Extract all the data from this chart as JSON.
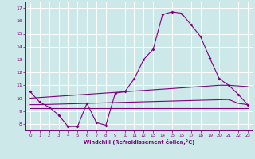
{
  "title": "",
  "xlabel": "Windchill (Refroidissement éolien,°C)",
  "bg_color": "#cce8e8",
  "line_color": "#800080",
  "grid_color": "#ffffff",
  "x_ticks": [
    0,
    1,
    2,
    3,
    4,
    5,
    6,
    7,
    8,
    9,
    10,
    11,
    12,
    13,
    14,
    15,
    16,
    17,
    18,
    19,
    20,
    21,
    22,
    23
  ],
  "y_ticks": [
    8,
    9,
    10,
    11,
    12,
    13,
    14,
    15,
    16,
    17
  ],
  "ylim": [
    7.5,
    17.5
  ],
  "xlim": [
    -0.5,
    23.5
  ],
  "series": [
    {
      "x": [
        0,
        1,
        2,
        3,
        4,
        5,
        6,
        7,
        8,
        9,
        10,
        11,
        12,
        13,
        14,
        15,
        16,
        17,
        18,
        19,
        20,
        21,
        22,
        23
      ],
      "y": [
        10.5,
        9.7,
        9.3,
        8.7,
        7.8,
        7.8,
        9.6,
        8.1,
        7.9,
        10.4,
        10.5,
        11.5,
        13.0,
        13.8,
        16.5,
        16.7,
        16.6,
        15.7,
        14.8,
        13.1,
        11.5,
        11.0,
        10.3,
        9.5
      ],
      "marker": true
    },
    {
      "x": [
        0,
        1,
        2,
        3,
        4,
        5,
        6,
        7,
        8,
        9,
        10,
        11,
        12,
        13,
        14,
        15,
        16,
        17,
        18,
        19,
        20,
        21,
        22,
        23
      ],
      "y": [
        10.0,
        10.05,
        10.1,
        10.15,
        10.2,
        10.25,
        10.3,
        10.35,
        10.4,
        10.45,
        10.5,
        10.55,
        10.6,
        10.65,
        10.7,
        10.75,
        10.8,
        10.85,
        10.9,
        10.95,
        11.0,
        11.0,
        10.95,
        10.9
      ],
      "marker": false
    },
    {
      "x": [
        0,
        1,
        2,
        3,
        4,
        5,
        6,
        7,
        8,
        9,
        10,
        11,
        12,
        13,
        14,
        15,
        16,
        17,
        18,
        19,
        20,
        21,
        22,
        23
      ],
      "y": [
        9.5,
        9.5,
        9.52,
        9.54,
        9.56,
        9.58,
        9.6,
        9.62,
        9.64,
        9.66,
        9.68,
        9.7,
        9.72,
        9.74,
        9.76,
        9.78,
        9.8,
        9.82,
        9.84,
        9.86,
        9.88,
        9.9,
        9.6,
        9.5
      ],
      "marker": false
    },
    {
      "x": [
        0,
        1,
        2,
        3,
        4,
        5,
        6,
        7,
        8,
        9,
        10,
        11,
        12,
        13,
        14,
        15,
        16,
        17,
        18,
        19,
        20,
        21,
        22,
        23
      ],
      "y": [
        9.2,
        9.2,
        9.2,
        9.2,
        9.2,
        9.2,
        9.2,
        9.2,
        9.2,
        9.2,
        9.2,
        9.2,
        9.2,
        9.2,
        9.2,
        9.2,
        9.2,
        9.2,
        9.2,
        9.2,
        9.2,
        9.2,
        9.2,
        9.2
      ],
      "marker": false
    }
  ]
}
